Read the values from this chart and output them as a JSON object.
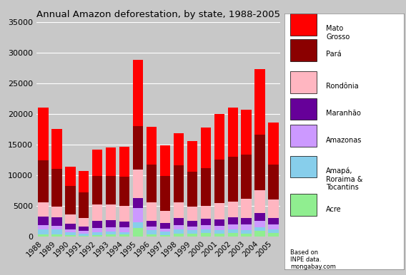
{
  "title": "Annual Amazon deforestation, by state, 1988-2005",
  "years": [
    1988,
    1989,
    1990,
    1991,
    1992,
    1993,
    1994,
    1995,
    1996,
    1997,
    1998,
    1999,
    2000,
    2001,
    2002,
    2003,
    2004,
    2005
  ],
  "series": {
    "Acre": [
      380,
      300,
      200,
      150,
      200,
      300,
      350,
      1400,
      400,
      280,
      500,
      450,
      580,
      460,
      540,
      480,
      900,
      600
    ],
    "Amapá, Roraima & Tocantins": [
      750,
      800,
      450,
      300,
      550,
      550,
      400,
      900,
      650,
      550,
      650,
      550,
      550,
      550,
      580,
      560,
      580,
      560
    ],
    "Amazonas": [
      700,
      650,
      500,
      450,
      650,
      680,
      700,
      2400,
      600,
      500,
      750,
      600,
      700,
      780,
      800,
      900,
      1100,
      780
    ],
    "Maranhão": [
      1400,
      1400,
      900,
      750,
      1100,
      1100,
      950,
      1600,
      950,
      900,
      1100,
      950,
      1050,
      1050,
      1200,
      1100,
      1200,
      1050
    ],
    "Rondônia": [
      2400,
      1700,
      1600,
      1400,
      2700,
      2600,
      2600,
      4600,
      3000,
      2000,
      2600,
      2300,
      2100,
      2600,
      2600,
      3100,
      3800,
      3100
    ],
    "Pará": [
      6800,
      6200,
      4600,
      4100,
      4700,
      4700,
      4800,
      7100,
      6100,
      5700,
      6000,
      5700,
      6200,
      7100,
      7300,
      7200,
      9000,
      5700
    ],
    "Mato Grosso": [
      8600,
      6500,
      3100,
      3500,
      4300,
      4600,
      4900,
      10800,
      6200,
      5000,
      5200,
      5000,
      6600,
      7500,
      8000,
      7300,
      10700,
      6800
    ]
  },
  "colors": {
    "Acre": "#90EE90",
    "Amapá, Roraima & Tocantins": "#87CEEB",
    "Amazonas": "#CC99FF",
    "Maranhão": "#660099",
    "Rondônia": "#FFB6C1",
    "Pará": "#8B0000",
    "Mato Grosso": "#FF0000"
  },
  "ylim": [
    0,
    35000
  ],
  "yticks": [
    0,
    5000,
    10000,
    15000,
    20000,
    25000,
    30000,
    35000
  ],
  "bg_color": "#C0C0C0",
  "legend_note": "Based on\nINPE data.\nmongabay.com"
}
